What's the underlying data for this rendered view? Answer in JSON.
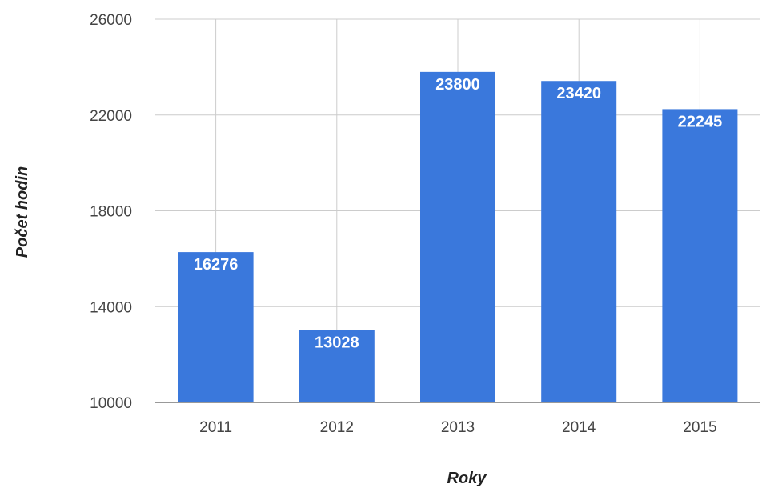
{
  "chart_data": {
    "type": "bar",
    "categories": [
      "2011",
      "2012",
      "2013",
      "2014",
      "2015"
    ],
    "values": [
      16276,
      13028,
      23800,
      23420,
      22245
    ],
    "value_labels": [
      "16276",
      "13028",
      "23800",
      "23420",
      "22245"
    ],
    "xlabel": "Roky",
    "ylabel": "Počet hodin",
    "ylim": [
      10000,
      26000
    ],
    "yticks": [
      10000,
      14000,
      18000,
      22000,
      26000
    ],
    "ytick_labels": [
      "10000",
      "14000",
      "18000",
      "22000",
      "26000"
    ],
    "grid": true,
    "bar_color": "#3a78dc",
    "legend": "none"
  }
}
